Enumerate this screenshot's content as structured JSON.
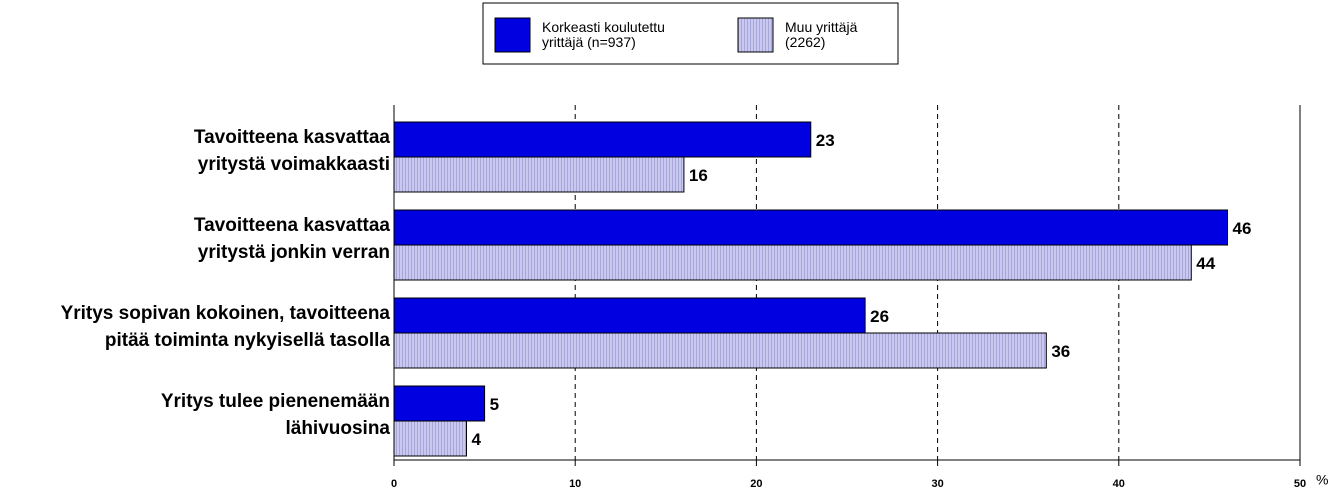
{
  "chart_data": {
    "type": "hbar",
    "categories": [
      "Tavoitteena kasvattaa\nyritystä voimakkaasti",
      "Tavoitteena kasvattaa\nyritystä jonkin verran",
      "Yritys sopivan kokoinen, tavoitteena\npitää toiminta nykyisellä tasolla",
      "Yritys tulee pienenemään\nlähivuosina"
    ],
    "series": [
      {
        "name": "Korkeasti koulutettu\nyrittäjä (n=937)",
        "color": "#0000e0",
        "values": [
          23,
          46,
          26,
          5
        ]
      },
      {
        "name": "Muu yrittäjä\n(2262)",
        "color": "#c8c8f0",
        "values": [
          16,
          44,
          36,
          4
        ]
      }
    ],
    "xlabel": "%",
    "xlim": [
      0,
      50
    ],
    "xticks": [
      0,
      10,
      20,
      30,
      40,
      50
    ],
    "grid": true
  }
}
